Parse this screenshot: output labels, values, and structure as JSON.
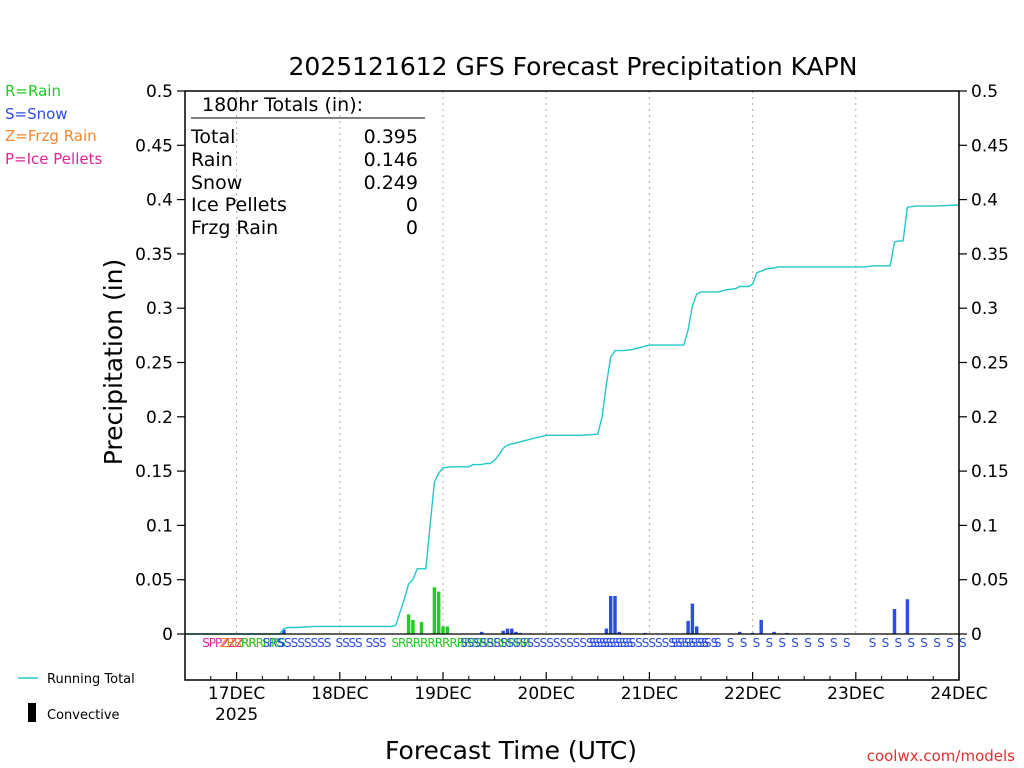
{
  "chart_data": {
    "type": "bar",
    "title": "2025121612 GFS Forecast Precipitation KAPN",
    "ylabel": "Precipitation (in)",
    "xlabel": "Forecast Time (UTC)",
    "ylim": [
      0,
      0.5
    ],
    "y_ticks": [
      0,
      0.05,
      0.1,
      0.15,
      0.2,
      0.25,
      0.3,
      0.35,
      0.4,
      0.45,
      0.5
    ],
    "y_tick_labels": [
      "0",
      "0.05",
      "0.1",
      "0.15",
      "0.2",
      "0.25",
      "0.3",
      "0.35",
      "0.4",
      "0.45",
      "0.5"
    ],
    "x_range_hours": [
      0,
      180
    ],
    "x_ticks": [
      {
        "hour": 12,
        "label": "17DEC",
        "sublabel": "2025"
      },
      {
        "hour": 36,
        "label": "18DEC",
        "sublabel": ""
      },
      {
        "hour": 60,
        "label": "19DEC",
        "sublabel": ""
      },
      {
        "hour": 84,
        "label": "20DEC",
        "sublabel": ""
      },
      {
        "hour": 108,
        "label": "21DEC",
        "sublabel": ""
      },
      {
        "hour": 132,
        "label": "22DEC",
        "sublabel": ""
      },
      {
        "hour": 156,
        "label": "23DEC",
        "sublabel": ""
      },
      {
        "hour": 180,
        "label": "24DEC",
        "sublabel": ""
      }
    ],
    "bar_hour_width": 0.8,
    "bars": [
      {
        "hour": 23,
        "value": 0.004,
        "type": "S"
      },
      {
        "hour": 52,
        "value": 0.018,
        "type": "R"
      },
      {
        "hour": 53,
        "value": 0.013,
        "type": "R"
      },
      {
        "hour": 55,
        "value": 0.011,
        "type": "R"
      },
      {
        "hour": 58,
        "value": 0.043,
        "type": "R"
      },
      {
        "hour": 59,
        "value": 0.039,
        "type": "R"
      },
      {
        "hour": 60,
        "value": 0.007,
        "type": "R"
      },
      {
        "hour": 61,
        "value": 0.007,
        "type": "R"
      },
      {
        "hour": 69,
        "value": 0.002,
        "type": "S"
      },
      {
        "hour": 74,
        "value": 0.003,
        "type": "S"
      },
      {
        "hour": 75,
        "value": 0.005,
        "type": "S"
      },
      {
        "hour": 76,
        "value": 0.005,
        "type": "S"
      },
      {
        "hour": 77,
        "value": 0.002,
        "type": "S"
      },
      {
        "hour": 78,
        "value": 0.001,
        "type": "S"
      },
      {
        "hour": 98,
        "value": 0.005,
        "type": "S"
      },
      {
        "hour": 99,
        "value": 0.035,
        "type": "S"
      },
      {
        "hour": 100,
        "value": 0.035,
        "type": "S"
      },
      {
        "hour": 101,
        "value": 0.002,
        "type": "S"
      },
      {
        "hour": 107,
        "value": 0.001,
        "type": "S"
      },
      {
        "hour": 117,
        "value": 0.012,
        "type": "S"
      },
      {
        "hour": 118,
        "value": 0.028,
        "type": "S"
      },
      {
        "hour": 119,
        "value": 0.007,
        "type": "S"
      },
      {
        "hour": 129,
        "value": 0.002,
        "type": "S"
      },
      {
        "hour": 132,
        "value": 0.001,
        "type": "S"
      },
      {
        "hour": 134,
        "value": 0.013,
        "type": "S"
      },
      {
        "hour": 137,
        "value": 0.002,
        "type": "S"
      },
      {
        "hour": 140,
        "value": 0.001,
        "type": "S"
      },
      {
        "hour": 165,
        "value": 0.023,
        "type": "S"
      },
      {
        "hour": 168,
        "value": 0.032,
        "type": "S"
      }
    ],
    "running_total": [
      [
        0,
        0
      ],
      [
        22,
        0
      ],
      [
        23,
        0.005
      ],
      [
        24,
        0.006
      ],
      [
        26,
        0.006
      ],
      [
        30,
        0.007
      ],
      [
        48,
        0.007
      ],
      [
        49,
        0.008
      ],
      [
        50,
        0.02
      ],
      [
        51,
        0.032
      ],
      [
        52,
        0.046
      ],
      [
        53,
        0.05
      ],
      [
        54,
        0.06
      ],
      [
        55,
        0.06
      ],
      [
        56,
        0.06
      ],
      [
        57,
        0.1
      ],
      [
        58,
        0.14
      ],
      [
        59,
        0.148
      ],
      [
        60,
        0.153
      ],
      [
        62,
        0.154
      ],
      [
        66,
        0.154
      ],
      [
        67,
        0.156
      ],
      [
        69,
        0.156
      ],
      [
        70,
        0.157
      ],
      [
        71,
        0.157
      ],
      [
        72,
        0.16
      ],
      [
        73,
        0.165
      ],
      [
        74,
        0.171
      ],
      [
        75,
        0.174
      ],
      [
        77,
        0.176
      ],
      [
        79,
        0.178
      ],
      [
        81,
        0.18
      ],
      [
        82,
        0.181
      ],
      [
        84,
        0.183
      ],
      [
        92,
        0.183
      ],
      [
        96,
        0.184
      ],
      [
        97,
        0.2
      ],
      [
        98,
        0.23
      ],
      [
        99,
        0.255
      ],
      [
        100,
        0.261
      ],
      [
        102,
        0.261
      ],
      [
        104,
        0.262
      ],
      [
        106,
        0.264
      ],
      [
        108,
        0.266
      ],
      [
        116,
        0.266
      ],
      [
        117,
        0.28
      ],
      [
        118,
        0.302
      ],
      [
        119,
        0.313
      ],
      [
        120,
        0.315
      ],
      [
        124,
        0.315
      ],
      [
        126,
        0.317
      ],
      [
        128,
        0.318
      ],
      [
        129,
        0.32
      ],
      [
        130,
        0.32
      ],
      [
        131,
        0.32
      ],
      [
        132,
        0.322
      ],
      [
        133,
        0.333
      ],
      [
        134,
        0.334
      ],
      [
        135,
        0.336
      ],
      [
        137,
        0.337
      ],
      [
        138,
        0.338
      ],
      [
        148,
        0.338
      ],
      [
        158,
        0.338
      ],
      [
        160,
        0.339
      ],
      [
        164,
        0.339
      ],
      [
        165,
        0.361
      ],
      [
        166,
        0.362
      ],
      [
        167,
        0.362
      ],
      [
        168,
        0.393
      ],
      [
        170,
        0.394
      ],
      [
        174,
        0.394
      ],
      [
        180,
        0.395
      ]
    ],
    "ptype_row": [
      {
        "hour": 4,
        "text": "SPPZZZ",
        "type": "P"
      },
      {
        "hour": 8,
        "text": "ZRRRR",
        "type": "Z"
      },
      {
        "hour": 13,
        "text": "RRRR",
        "type": "R"
      },
      {
        "hour": 18,
        "text": "SRS",
        "type": "S"
      },
      {
        "hour": 20,
        "text": "RS",
        "type": "R"
      },
      {
        "hour": 21.5,
        "text": "SSSSSSSS",
        "type": "S"
      },
      {
        "hour": 35,
        "text": "SS",
        "type": "S"
      },
      {
        "hour": 38,
        "text": "SS",
        "type": "S"
      },
      {
        "hour": 42,
        "text": "SSS",
        "type": "S"
      },
      {
        "hour": 48,
        "text": "SRRRRRRRRRRRRRRRRRR",
        "type": "R"
      },
      {
        "hour": 64,
        "text": "SSSSSSSSSSSSSSSSSSSSSSSSSS",
        "type": "S"
      },
      {
        "hour": 94,
        "text": "SSS",
        "type": "S"
      },
      {
        "hour": 97,
        "text": "SSSSSSSSSSSSSSSS",
        "type": "S"
      },
      {
        "hour": 113,
        "text": "SSSSSSS",
        "type": "S"
      },
      {
        "hour": 120,
        "text": "S",
        "type": "S"
      },
      {
        "hour": 123,
        "text": "S",
        "type": "S"
      },
      {
        "hour": 126,
        "text": "S",
        "type": "S"
      },
      {
        "hour": 129,
        "text": "S",
        "type": "S"
      },
      {
        "hour": 132,
        "text": "S",
        "type": "S"
      },
      {
        "hour": 135,
        "text": "S",
        "type": "S"
      },
      {
        "hour": 138,
        "text": "S",
        "type": "S"
      },
      {
        "hour": 141,
        "text": "S",
        "type": "S"
      },
      {
        "hour": 144,
        "text": "S",
        "type": "S"
      },
      {
        "hour": 147,
        "text": "S",
        "type": "S"
      },
      {
        "hour": 150,
        "text": "S",
        "type": "S"
      },
      {
        "hour": 153,
        "text": "S",
        "type": "S"
      },
      {
        "hour": 159,
        "text": "S",
        "type": "S"
      },
      {
        "hour": 162,
        "text": "S",
        "type": "S"
      },
      {
        "hour": 165,
        "text": "S",
        "type": "S"
      },
      {
        "hour": 168,
        "text": "S",
        "type": "S"
      },
      {
        "hour": 171,
        "text": "S",
        "type": "S"
      },
      {
        "hour": 174,
        "text": "S",
        "type": "S"
      },
      {
        "hour": 177,
        "text": "S",
        "type": "S"
      },
      {
        "hour": 180,
        "text": "S",
        "type": "S"
      }
    ],
    "totals_box": {
      "heading": "180hr Totals (in):",
      "rows": [
        {
          "label": "Total",
          "value": "0.395"
        },
        {
          "label": "Rain",
          "value": "0.146"
        },
        {
          "label": "Snow",
          "value": "0.249"
        },
        {
          "label": "Ice Pellets",
          "value": "0"
        },
        {
          "label": "Frzg Rain",
          "value": "0"
        }
      ]
    },
    "type_legend": [
      {
        "code": "R",
        "text": "R=Rain",
        "color": "#22cc22"
      },
      {
        "code": "S",
        "text": "S=Snow",
        "color": "#2b4de0"
      },
      {
        "code": "Z",
        "text": "Z=Frzg Rain",
        "color": "#ee8833"
      },
      {
        "code": "P",
        "text": "P=Ice Pellets",
        "color": "#e0249a"
      }
    ],
    "series_legend": {
      "running_total": "Running Total",
      "convective": "Convective"
    },
    "colors": {
      "running_total": "#22c8c8",
      "rain": "#22cc22",
      "snow": "#2b4de0",
      "frzg_rain": "#ee8833",
      "ice_pellets": "#e0249a",
      "convective": "#000000",
      "axis": "#000000",
      "grid": "#aaaaaa",
      "credit": "#e03030"
    },
    "credit": "coolwx.com/models"
  }
}
